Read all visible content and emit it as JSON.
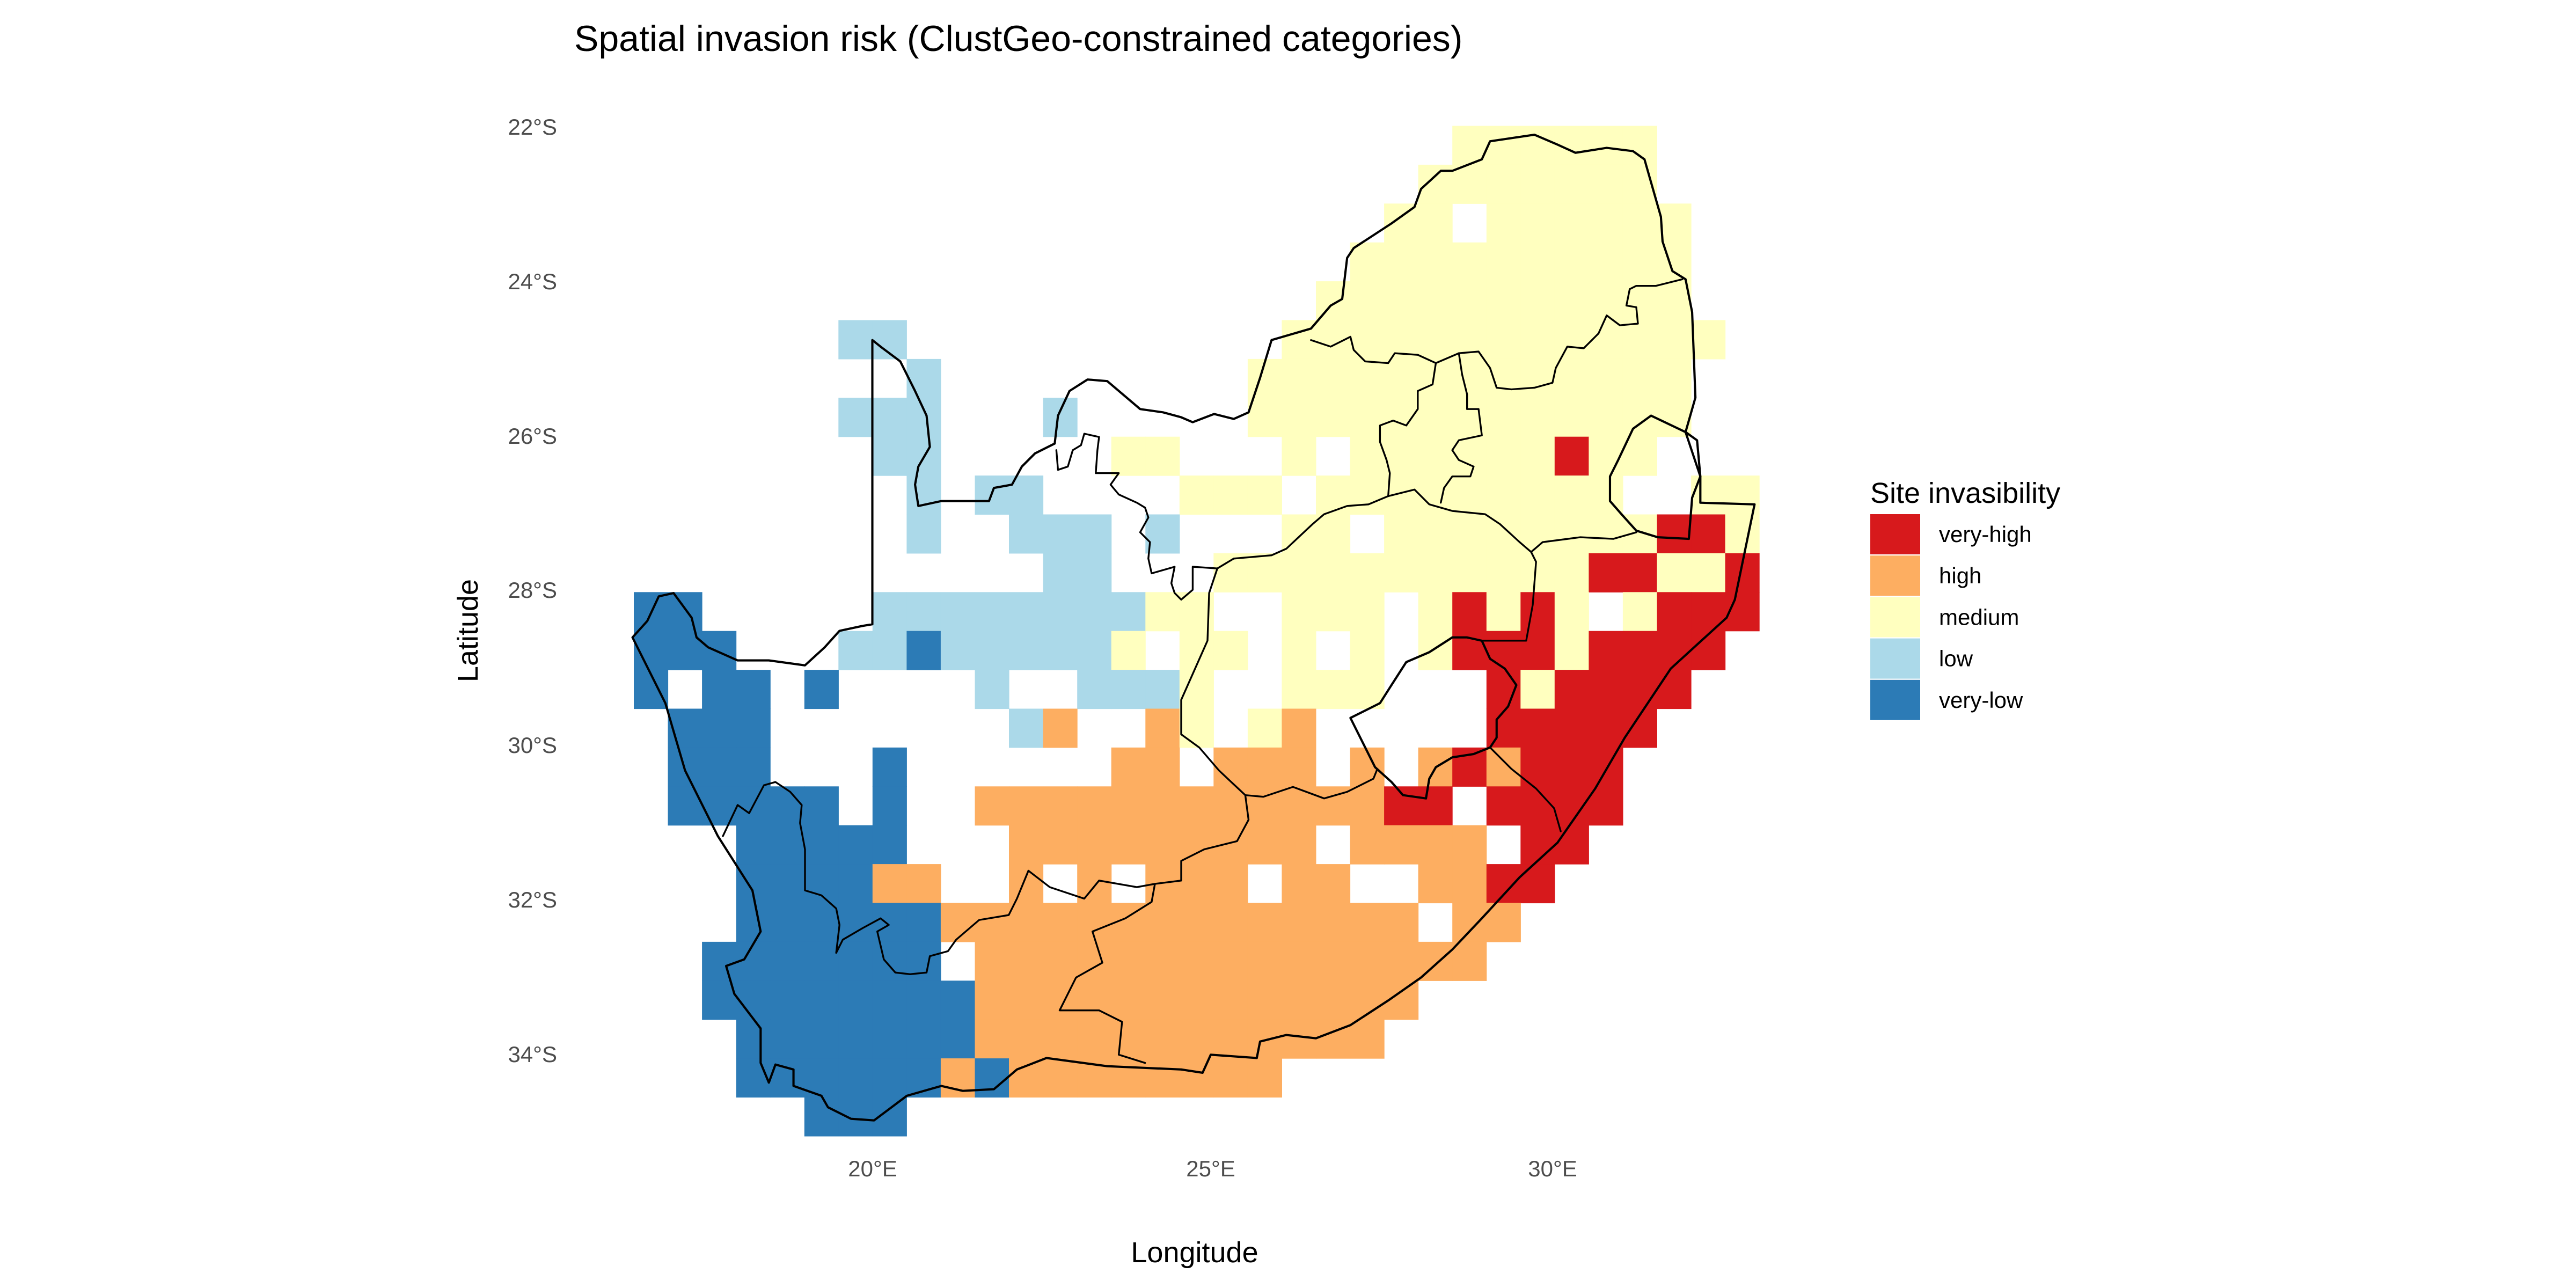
{
  "title": "Spatial invasion risk (ClustGeo-constrained categories)",
  "x_axis": {
    "label": "Longitude",
    "ticks": [
      "20°E",
      "25°E",
      "30°E"
    ]
  },
  "y_axis": {
    "label": "Latitude",
    "ticks": [
      "22°S",
      "24°S",
      "26°S",
      "28°S",
      "30°S",
      "32°S",
      "34°S"
    ]
  },
  "legend": {
    "title": "Site invasibility",
    "items": [
      {
        "code": "R",
        "label": "very-high",
        "color": "#D7191C"
      },
      {
        "code": "O",
        "label": "high",
        "color": "#FDAE61"
      },
      {
        "code": "Y",
        "label": "medium",
        "color": "#FFFFBF"
      },
      {
        "code": "L",
        "label": "low",
        "color": "#ABD9E9"
      },
      {
        "code": "B",
        "label": "very-low",
        "color": "#2C7BB6"
      }
    ]
  },
  "map_data": {
    "type": "raster",
    "region": "South Africa",
    "boundaries": "province outlines",
    "cell_codes_note_empty": ".",
    "rows_north_to_south": [
      "........................YYYYYY...",
      ".......................YYYYYYY...",
      "......................YY.YYYYYY..",
      ".....................YYYYYYYYYY..",
      "....................YYYYYYYYYYY..",
      "......LL...........YYYYYYYYYYYYY.",
      "........L.........YYYYYYYYYYYYY..",
      "......LLL...L.....YYYYYYYYYYYYY..",
      ".......LL.....YY...Y.YYYYYYRYY...",
      "........L.LL....YYY.YYYYYYYYY..YY",
      "........L..LLL.L...YY.YYYYYYYYRRY",
      "............LL...YYYYYYYYYYYRRYYR",
      "BB.....LLLLLLLLYY..YYY.YRYRY.YRRR",
      "BBB...LLBLLLLLY.YY.Y.Y.YRRRYRRRR.",
      "B.BB.B....L..LLLY..YYY...RYRRRR..",
      ".BBB.......LO..OY.YO.....RRRRR...",
      ".BBB...B......OO.OOO.O.ORORRR....",
      ".BBBBB.B..OOOOOOOOOOOORR.RRRR....",
      "...BBBBB...OOOOOOOOO.OOOO.RR.....",
      "...BBBBOO..O.O.OOO.OO..OORR......",
      "...BBBBBBOOOOOOOOOOOOOO.OO.......",
      "..BBBBBBB.OOOOOOOOOOOOOOO........",
      "..BBBBBBBBOOOOOOOOOOOOO..........",
      "...BBBBBBBOOOOOOOOOOOO...........",
      "...BBBBBBOBOOOOOOOO..............",
      ".....BBB........................."
    ]
  }
}
